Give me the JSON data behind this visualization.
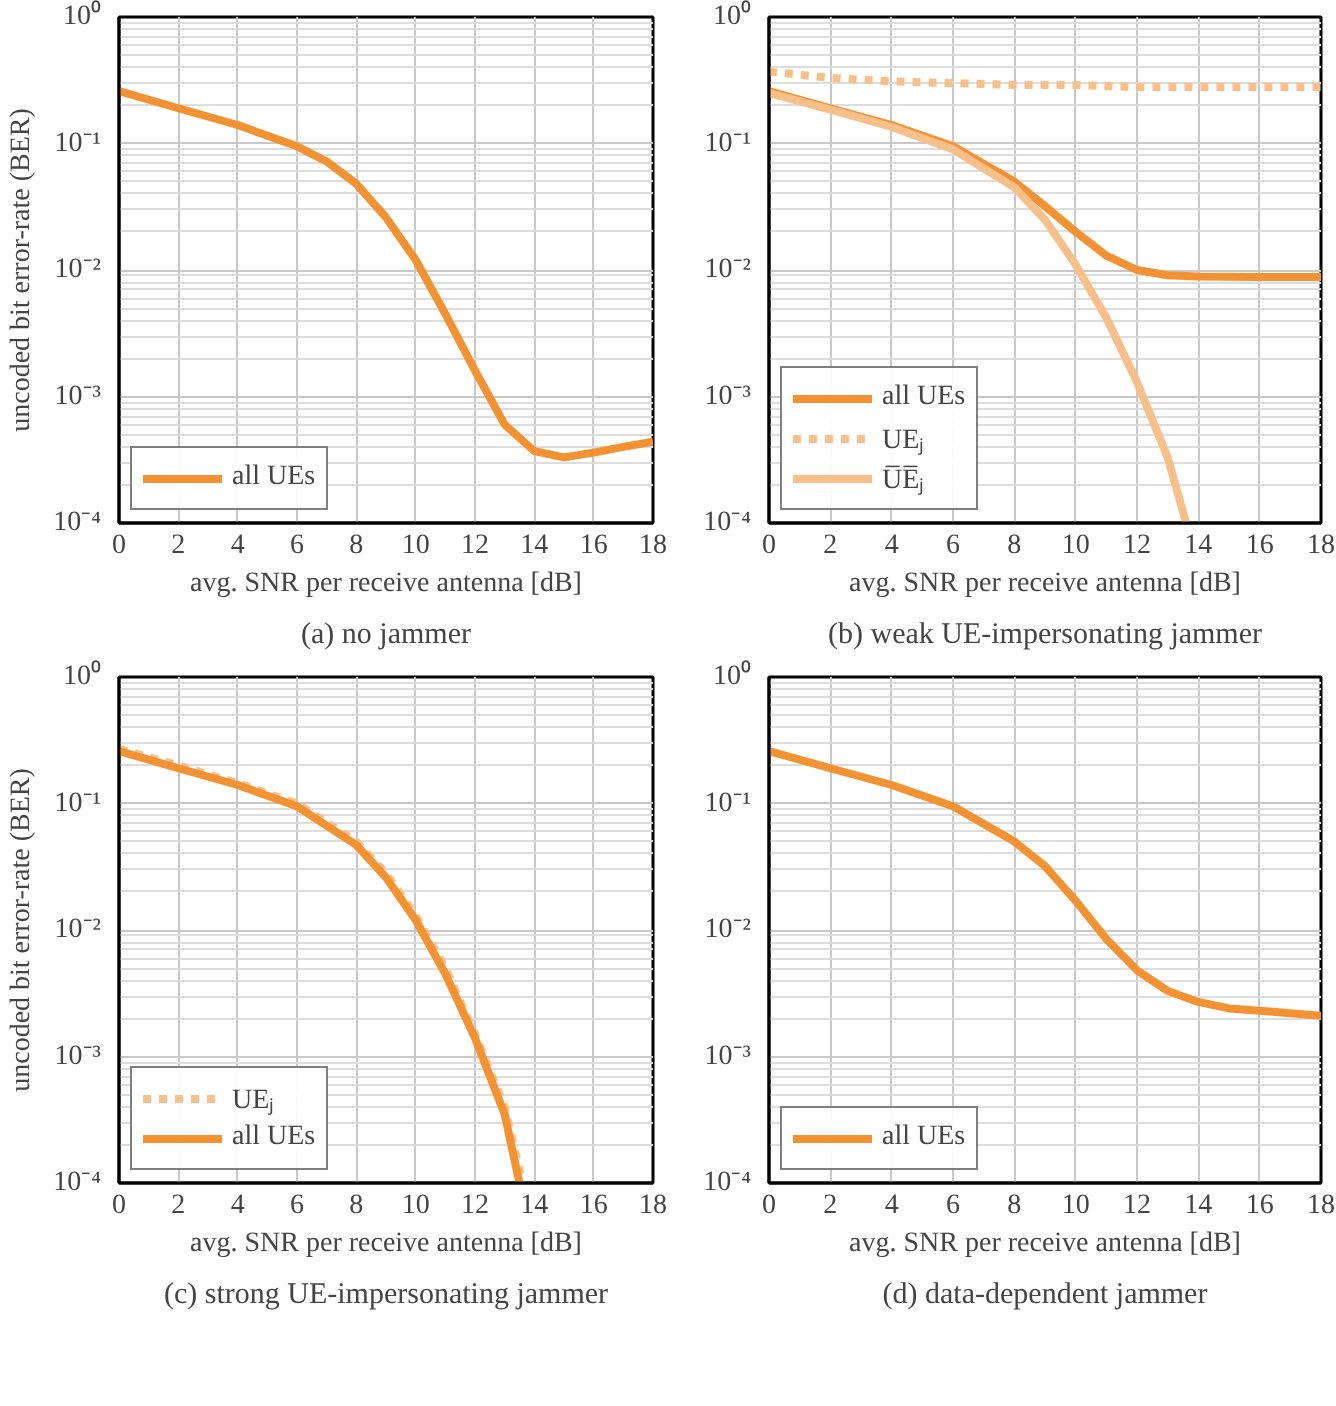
{
  "chart_data": [
    {
      "type": "line",
      "title": "(a) no jammer",
      "xlabel": "avg. SNR per receive antenna [dB]",
      "ylabel": "uncoded bit error-rate (BER)",
      "log": "y",
      "grid": true,
      "legend": "bottom left",
      "xlim": [
        0,
        18
      ],
      "xticks": [
        0,
        2,
        4,
        6,
        8,
        10,
        12,
        14,
        16,
        18
      ],
      "ylim": [
        0.0001,
        1
      ],
      "yticks": [
        {
          "value": 0.0001,
          "label": "10⁻⁴"
        },
        {
          "value": 0.001,
          "label": "10⁻³"
        },
        {
          "value": 0.01,
          "label": "10⁻²"
        },
        {
          "value": 0.1,
          "label": "10⁻¹"
        },
        {
          "value": 1,
          "label": "10⁰"
        }
      ],
      "series": [
        {
          "name": "all UEs",
          "color": "#f39233",
          "line_style": "solid",
          "x": [
            0,
            2,
            4,
            6,
            7,
            8,
            9,
            10,
            11,
            12,
            13,
            14,
            15,
            16,
            17,
            18
          ],
          "values": [
            0.26,
            0.19,
            0.14,
            0.095,
            0.072,
            0.048,
            0.026,
            0.012,
            0.0045,
            0.0016,
            0.0006,
            0.00037,
            0.00033,
            0.00036,
            0.0004,
            0.00044
          ]
        }
      ]
    },
    {
      "type": "line",
      "title": "(b) weak UE-impersonating jammer",
      "xlabel": "avg. SNR per receive antenna [dB]",
      "log": "y",
      "grid": true,
      "legend": "bottom left",
      "xlim": [
        0,
        18
      ],
      "xticks": [
        0,
        2,
        4,
        6,
        8,
        10,
        12,
        14,
        16,
        18
      ],
      "ylim": [
        0.0001,
        1
      ],
      "yticks": [
        {
          "value": 0.0001,
          "label": "10⁻⁴"
        },
        {
          "value": 0.001,
          "label": "10⁻³"
        },
        {
          "value": 0.01,
          "label": "10⁻²"
        },
        {
          "value": 0.1,
          "label": "10⁻¹"
        },
        {
          "value": 1,
          "label": "10⁰"
        }
      ],
      "series": [
        {
          "name": "all UEs",
          "color": "#f39233",
          "line_style": "solid",
          "x": [
            0,
            2,
            4,
            6,
            8,
            9,
            10,
            11,
            12,
            13,
            14,
            16,
            18
          ],
          "values": [
            0.26,
            0.19,
            0.14,
            0.095,
            0.05,
            0.032,
            0.02,
            0.013,
            0.01,
            0.0091,
            0.0089,
            0.0088,
            0.0088
          ]
        },
        {
          "name": "UEⱼ",
          "color": "#f7c08a",
          "line_style": "dashed",
          "x": [
            0,
            2,
            4,
            6,
            8,
            10,
            12,
            14,
            16,
            18
          ],
          "values": [
            0.37,
            0.33,
            0.31,
            0.3,
            0.29,
            0.29,
            0.28,
            0.28,
            0.28,
            0.28
          ]
        },
        {
          "name": "U̅E̅ⱼ",
          "color": "#f7c08a",
          "line_style": "solid",
          "x": [
            0,
            2,
            4,
            6,
            8,
            9,
            10,
            11,
            12,
            13,
            13.6
          ],
          "values": [
            0.25,
            0.185,
            0.135,
            0.09,
            0.045,
            0.025,
            0.011,
            0.0042,
            0.0013,
            0.00033,
            0.0001
          ]
        }
      ]
    },
    {
      "type": "line",
      "title": "(c) strong UE-impersonating jammer",
      "xlabel": "avg. SNR per receive antenna [dB]",
      "ylabel": "uncoded bit error-rate (BER)",
      "log": "y",
      "grid": true,
      "legend": "bottom left",
      "xlim": [
        0,
        18
      ],
      "xticks": [
        0,
        2,
        4,
        6,
        8,
        10,
        12,
        14,
        16,
        18
      ],
      "ylim": [
        0.0001,
        1
      ],
      "yticks": [
        {
          "value": 0.0001,
          "label": "10⁻⁴"
        },
        {
          "value": 0.001,
          "label": "10⁻³"
        },
        {
          "value": 0.01,
          "label": "10⁻²"
        },
        {
          "value": 0.1,
          "label": "10⁻¹"
        },
        {
          "value": 1,
          "label": "10⁰"
        }
      ],
      "series": [
        {
          "name": "UEⱼ",
          "color": "#f7c08a",
          "line_style": "dashed",
          "x": [
            0,
            2,
            4,
            6,
            8,
            9,
            10,
            11,
            12,
            13,
            13.6
          ],
          "values": [
            0.27,
            0.2,
            0.145,
            0.1,
            0.05,
            0.028,
            0.013,
            0.005,
            0.0015,
            0.0004,
            0.0001
          ]
        },
        {
          "name": "all UEs",
          "color": "#f39233",
          "line_style": "solid",
          "x": [
            0,
            2,
            4,
            6,
            8,
            9,
            10,
            11,
            12,
            13,
            13.5
          ],
          "values": [
            0.26,
            0.19,
            0.14,
            0.095,
            0.047,
            0.026,
            0.012,
            0.0045,
            0.0014,
            0.00035,
            0.0001
          ]
        }
      ]
    },
    {
      "type": "line",
      "title": "(d) data-dependent jammer",
      "xlabel": "avg. SNR per receive antenna [dB]",
      "log": "y",
      "grid": true,
      "legend": "bottom left",
      "xlim": [
        0,
        18
      ],
      "xticks": [
        0,
        2,
        4,
        6,
        8,
        10,
        12,
        14,
        16,
        18
      ],
      "ylim": [
        0.0001,
        1
      ],
      "yticks": [
        {
          "value": 0.0001,
          "label": "10⁻⁴"
        },
        {
          "value": 0.001,
          "label": "10⁻³"
        },
        {
          "value": 0.01,
          "label": "10⁻²"
        },
        {
          "value": 0.1,
          "label": "10⁻¹"
        },
        {
          "value": 1,
          "label": "10⁰"
        }
      ],
      "series": [
        {
          "name": "all UEs",
          "color": "#f39233",
          "line_style": "solid",
          "x": [
            0,
            2,
            4,
            6,
            8,
            9,
            10,
            11,
            12,
            13,
            14,
            15,
            16,
            17,
            18
          ],
          "values": [
            0.26,
            0.19,
            0.14,
            0.095,
            0.05,
            0.032,
            0.017,
            0.0085,
            0.0048,
            0.0033,
            0.0027,
            0.0024,
            0.0023,
            0.0022,
            0.0021
          ]
        }
      ]
    }
  ]
}
